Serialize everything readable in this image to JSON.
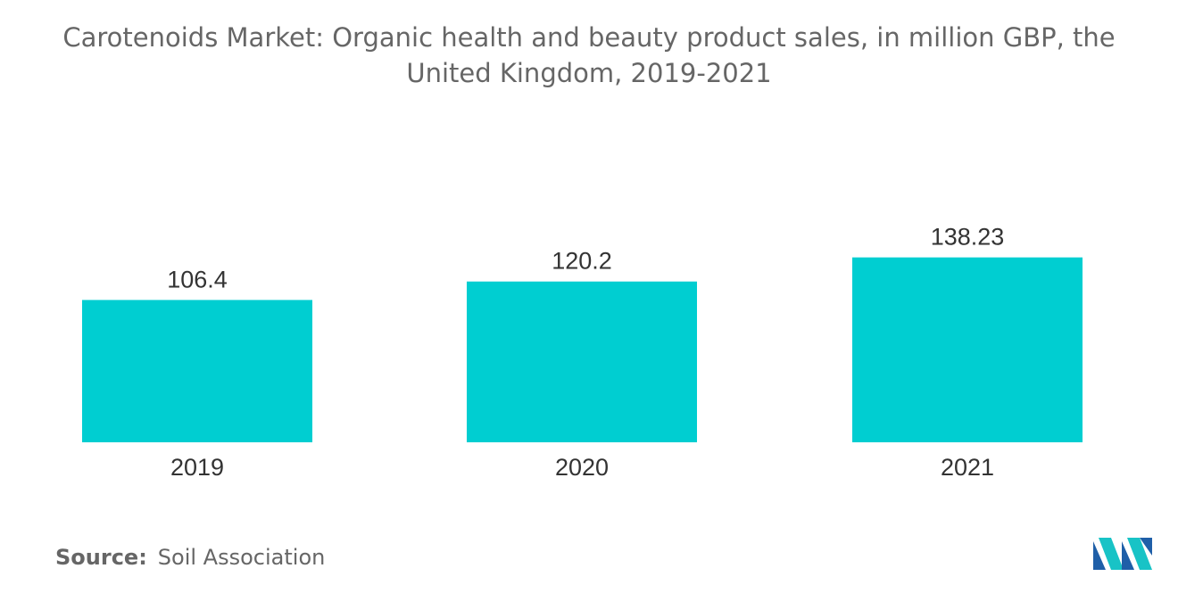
{
  "chart_data": {
    "type": "bar",
    "title": "Carotenoids Market: Organic health and beauty product sales, in million GBP, the United Kingdom, 2019-2021",
    "categories": [
      "2019",
      "2020",
      "2021"
    ],
    "values": [
      106.4,
      120.2,
      138.23
    ],
    "value_labels": [
      "106.4",
      "120.2",
      "138.23"
    ],
    "xlabel": "",
    "ylabel": "",
    "ylim": [
      0,
      155
    ],
    "grid": false,
    "y_axis_visible": false,
    "bar_color": "#00CED1"
  },
  "source": {
    "label": "Source:",
    "text": "Soil Association"
  },
  "logo": {
    "icon": "mordor-intelligence-logo-icon",
    "colors": [
      "#1f5fa8",
      "#18c3c6"
    ]
  }
}
